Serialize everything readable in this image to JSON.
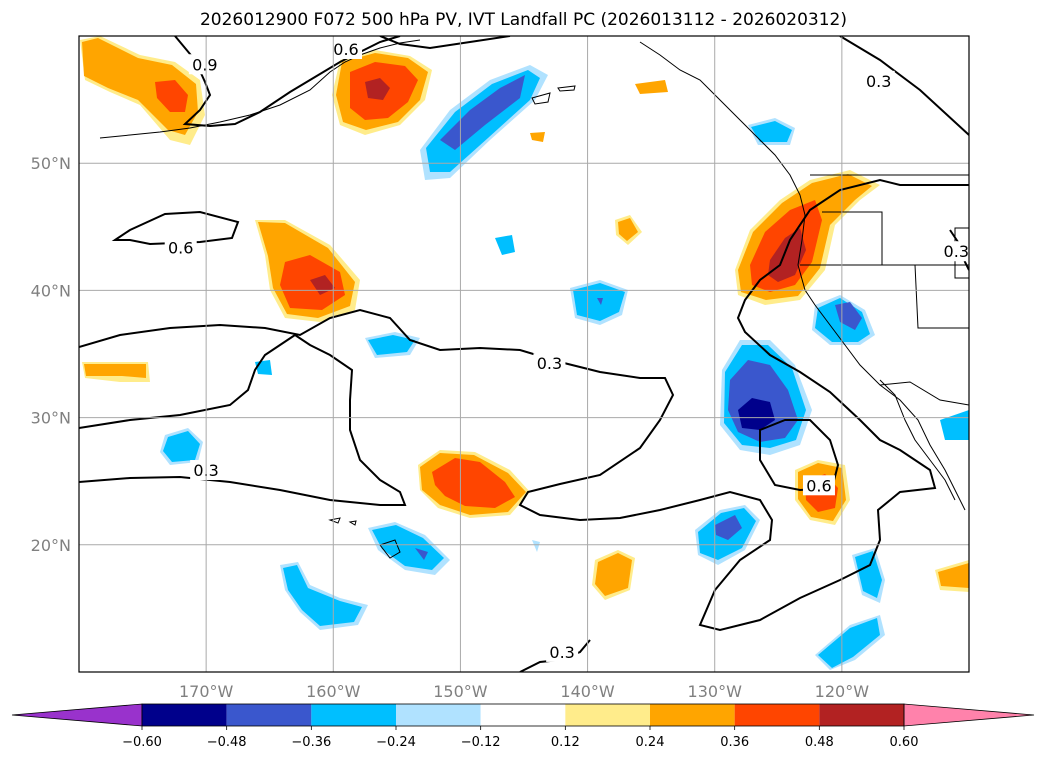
{
  "title": "2026012900 F072 500 hPa PV, IVT Landfall PC (2026013112 - 2026020312)",
  "map": {
    "lon_range": [
      -180,
      -110
    ],
    "lat_range": [
      10,
      60
    ],
    "lat_labels": [
      "50°N",
      "40°N",
      "30°N",
      "20°N"
    ],
    "lat_values": [
      50,
      40,
      30,
      20
    ],
    "lon_labels": [
      "170°W",
      "160°W",
      "150°W",
      "140°W",
      "130°W",
      "120°W"
    ],
    "lon_values": [
      -170,
      -160,
      -150,
      -140,
      -130,
      -120
    ],
    "contour_labels": [
      {
        "text": "0.9",
        "lon": -170.1,
        "lat": 57.7
      },
      {
        "text": "0.6",
        "lon": -159.0,
        "lat": 58.9
      },
      {
        "text": "0.3",
        "lon": -117.1,
        "lat": 56.4
      },
      {
        "text": "0.6",
        "lon": -172.0,
        "lat": 43.3
      },
      {
        "text": "0.3",
        "lon": -143.0,
        "lat": 34.2
      },
      {
        "text": "0.3",
        "lon": -170.0,
        "lat": 25.8
      },
      {
        "text": "0.6",
        "lon": -121.8,
        "lat": 24.6
      },
      {
        "text": "0.3",
        "lon": -111.0,
        "lat": 43.0
      },
      {
        "text": "0.3",
        "lon": -142.0,
        "lat": 11.5
      }
    ]
  },
  "colorbar": {
    "tick_labels": [
      "−0.60",
      "−0.48",
      "−0.36",
      "−0.24",
      "−0.12",
      "0.12",
      "0.24",
      "0.36",
      "0.48",
      "0.60"
    ],
    "levels": [
      -0.6,
      -0.48,
      -0.36,
      -0.24,
      -0.12,
      0.12,
      0.24,
      0.36,
      0.48,
      0.6
    ],
    "colors": [
      "#9932cc",
      "#00008b",
      "#3a57cd",
      "#00bfff",
      "#b0e2ff",
      "#ffffff",
      "#ffec8b",
      "#ffa500",
      "#ff4500",
      "#b22222",
      "#ff82ab"
    ],
    "extend": "both"
  }
}
